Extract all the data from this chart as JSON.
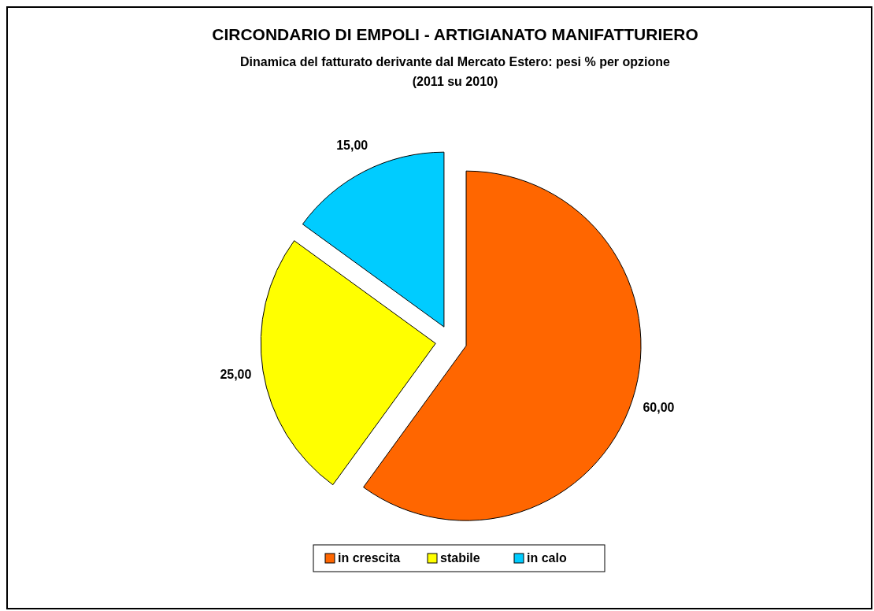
{
  "chart_data": {
    "type": "pie",
    "title": "CIRCONDARIO DI EMPOLI - ARTIGIANATO MANIFATTURIERO",
    "subtitle": "Dinamica del fatturato derivante dal Mercato Estero: pesi % per opzione\n(2011 su 2010)",
    "categories": [
      "in crescita",
      "stabile",
      "in calo"
    ],
    "values": [
      60,
      25,
      15
    ],
    "value_labels": [
      "60,00",
      "25,00",
      "15,00"
    ],
    "colors": [
      "#ff6600",
      "#ffff00",
      "#00ccff"
    ],
    "legend": "bottom"
  }
}
